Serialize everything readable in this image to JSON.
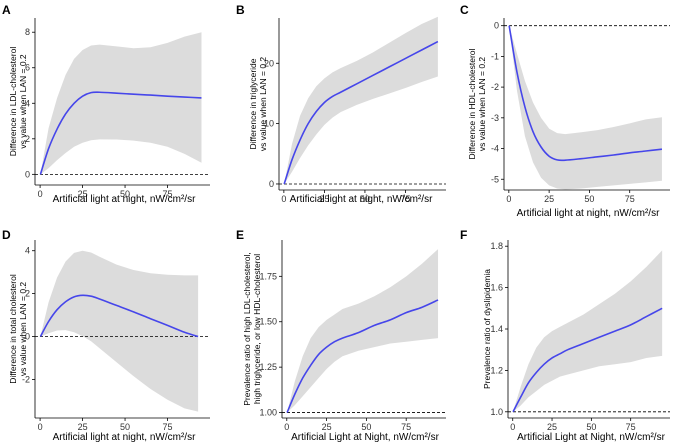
{
  "colors": {
    "line": "#4646ea",
    "band": "#dcdcdc",
    "axis": "#000000",
    "reference": "#000000"
  },
  "chart_data": [
    {
      "type": "line",
      "panel": "A",
      "xlabel": "Artificial light at night, nW/cm²/sr",
      "ylabel": [
        "Difference in LDL-cholesterol",
        "vs value when LAN = 0.2"
      ],
      "xlim": [
        -3,
        100
      ],
      "ylim": [
        -0.6,
        8.8
      ],
      "xticks": [
        0,
        25,
        50,
        75
      ],
      "xtick_labels": [
        "0",
        "25",
        "50",
        "75"
      ],
      "yticks": [
        0,
        2,
        4,
        6,
        8
      ],
      "ytick_labels": [
        "0",
        "2",
        "4",
        "6",
        "8"
      ],
      "reference_y": 0,
      "series": [
        {
          "name": "estimate",
          "x": [
            0.2,
            5,
            10,
            15,
            20,
            25,
            30,
            35,
            45,
            55,
            65,
            75,
            85,
            95
          ],
          "y": [
            0,
            1.45,
            2.55,
            3.4,
            4.0,
            4.4,
            4.6,
            4.62,
            4.57,
            4.51,
            4.46,
            4.4,
            4.35,
            4.3
          ],
          "lower": [
            0,
            0.35,
            0.8,
            1.2,
            1.55,
            1.78,
            1.92,
            1.97,
            1.96,
            1.9,
            1.78,
            1.55,
            1.15,
            0.65
          ],
          "upper": [
            0,
            2.6,
            4.3,
            5.6,
            6.5,
            7.0,
            7.25,
            7.3,
            7.2,
            7.1,
            7.15,
            7.4,
            7.75,
            8.0
          ]
        }
      ]
    },
    {
      "type": "line",
      "panel": "B",
      "xlabel": "Artificial light at night, nW/cm²/sr",
      "ylabel": [
        "Difference in triglyceride",
        "vs value when LAN = 0.2"
      ],
      "xlim": [
        -3,
        100
      ],
      "ylim": [
        -1,
        27.5
      ],
      "xticks": [
        0,
        25,
        50,
        75
      ],
      "xtick_labels": [
        "0",
        "25",
        "50",
        "75"
      ],
      "yticks": [
        0,
        10,
        20
      ],
      "ytick_labels": [
        "0",
        "10",
        "20"
      ],
      "reference_y": 0,
      "series": [
        {
          "name": "estimate",
          "x": [
            0.2,
            5,
            10,
            15,
            20,
            25,
            30,
            35,
            45,
            55,
            65,
            75,
            85,
            95
          ],
          "y": [
            0,
            4.0,
            7.3,
            10.0,
            12.0,
            13.5,
            14.5,
            15.2,
            16.6,
            18.0,
            19.4,
            20.8,
            22.2,
            23.6
          ],
          "lower": [
            0,
            2.0,
            4.3,
            6.4,
            8.2,
            9.8,
            11.0,
            11.9,
            13.1,
            14.1,
            15.0,
            15.9,
            16.9,
            17.8
          ],
          "upper": [
            0,
            6.6,
            11.3,
            14.2,
            16.2,
            17.5,
            18.5,
            19.2,
            20.4,
            21.8,
            23.4,
            25.0,
            26.5,
            27.7
          ]
        }
      ]
    },
    {
      "type": "line",
      "panel": "C",
      "xlabel": "Artificial light at night, nW/cm²/sr",
      "ylabel": [
        "Difference in HDL-cholesterol",
        "vs value when LAN = 0.2"
      ],
      "xlim": [
        -3,
        100
      ],
      "ylim": [
        -5.35,
        0.25
      ],
      "xticks": [
        0,
        25,
        50,
        75
      ],
      "xtick_labels": [
        "0",
        "25",
        "50",
        "75"
      ],
      "yticks": [
        0,
        -1,
        -2,
        -3,
        -4,
        -5
      ],
      "ytick_labels": [
        "0",
        "-1",
        "-2",
        "-3",
        "-4",
        "-5"
      ],
      "reference_y": 0,
      "series": [
        {
          "name": "estimate",
          "x": [
            0.2,
            5,
            10,
            15,
            20,
            25,
            30,
            35,
            45,
            55,
            65,
            75,
            85,
            95
          ],
          "y": [
            0,
            -1.5,
            -2.65,
            -3.45,
            -3.95,
            -4.25,
            -4.37,
            -4.38,
            -4.33,
            -4.27,
            -4.21,
            -4.14,
            -4.08,
            -4.02
          ],
          "lower": [
            0,
            -2.1,
            -3.6,
            -4.45,
            -4.95,
            -5.2,
            -5.3,
            -5.33,
            -5.3,
            -5.25,
            -5.2,
            -5.15,
            -5.1,
            -5.05
          ],
          "upper": [
            0,
            -0.9,
            -1.8,
            -2.5,
            -3.0,
            -3.35,
            -3.5,
            -3.53,
            -3.47,
            -3.4,
            -3.3,
            -3.18,
            -3.05,
            -2.98
          ]
        }
      ]
    },
    {
      "type": "line",
      "panel": "D",
      "xlabel": "Artificial light at night, nW/cm²/sr",
      "ylabel": [
        "Difference in total cholesterol",
        "vs value when LAN = 0.2"
      ],
      "xlim": [
        -3,
        100
      ],
      "ylim": [
        -3.8,
        4.5
      ],
      "xticks": [
        0,
        25,
        50,
        75
      ],
      "xtick_labels": [
        "0",
        "25",
        "50",
        "75"
      ],
      "yticks": [
        4,
        2,
        0,
        -2
      ],
      "ytick_labels": [
        "4",
        "2",
        "0",
        "-2"
      ],
      "reference_y": 0,
      "series": [
        {
          "name": "estimate",
          "x": [
            0.2,
            5,
            10,
            15,
            20,
            25,
            30,
            35,
            45,
            55,
            65,
            75,
            85,
            93
          ],
          "y": [
            0,
            0.7,
            1.25,
            1.62,
            1.85,
            1.92,
            1.88,
            1.75,
            1.45,
            1.15,
            0.83,
            0.52,
            0.2,
            0
          ],
          "lower": [
            0,
            0.15,
            0.28,
            0.3,
            0.2,
            0.02,
            -0.22,
            -0.55,
            -1.2,
            -1.85,
            -2.45,
            -2.95,
            -3.35,
            -3.5
          ],
          "upper": [
            0,
            1.6,
            2.75,
            3.5,
            3.9,
            4.0,
            3.92,
            3.72,
            3.35,
            3.1,
            2.95,
            2.88,
            2.85,
            2.85
          ]
        }
      ]
    },
    {
      "type": "line",
      "panel": "E",
      "xlabel": "Artificial Light at Night, nW/cm²/sr",
      "ylabel": [
        "Prevalence ratio of high LDL-cholesterol,",
        "high triglyceride, or low HDL-cholesterol"
      ],
      "xlim": [
        -3,
        100
      ],
      "ylim": [
        0.97,
        1.95
      ],
      "xticks": [
        0,
        25,
        50,
        75
      ],
      "xtick_labels": [
        "0",
        "25",
        "50",
        "75"
      ],
      "yticks": [
        1.0,
        1.25,
        1.5,
        1.75
      ],
      "ytick_labels": [
        "1.00",
        "1.25",
        "1.50",
        "1.75"
      ],
      "reference_y": 1.0,
      "series": [
        {
          "name": "estimate",
          "x": [
            0.2,
            5,
            10,
            15,
            20,
            25,
            30,
            35,
            45,
            55,
            65,
            75,
            85,
            95
          ],
          "y": [
            1.0,
            1.1,
            1.19,
            1.26,
            1.32,
            1.36,
            1.39,
            1.41,
            1.44,
            1.48,
            1.51,
            1.55,
            1.58,
            1.62
          ],
          "lower": [
            1.0,
            1.04,
            1.09,
            1.14,
            1.19,
            1.24,
            1.28,
            1.31,
            1.34,
            1.36,
            1.38,
            1.39,
            1.4,
            1.41
          ],
          "upper": [
            1.0,
            1.17,
            1.31,
            1.41,
            1.47,
            1.51,
            1.54,
            1.57,
            1.6,
            1.64,
            1.69,
            1.75,
            1.82,
            1.9
          ]
        }
      ]
    },
    {
      "type": "line",
      "panel": "F",
      "xlabel": "Artificial Light at Night, nW/cm²/sr",
      "ylabel": [
        "Prevalence ratio of dyslipidemia"
      ],
      "xlim": [
        -3,
        100
      ],
      "ylim": [
        0.97,
        1.83
      ],
      "xticks": [
        0,
        25,
        50,
        75
      ],
      "xtick_labels": [
        "0",
        "25",
        "50",
        "75"
      ],
      "yticks": [
        1.0,
        1.2,
        1.4,
        1.6,
        1.8
      ],
      "ytick_labels": [
        "1.0",
        "1.2",
        "1.4",
        "1.6",
        "1.8"
      ],
      "reference_y": 1.0,
      "series": [
        {
          "name": "estimate",
          "x": [
            0.2,
            5,
            10,
            15,
            20,
            25,
            30,
            35,
            45,
            55,
            65,
            75,
            85,
            95
          ],
          "y": [
            1.0,
            1.07,
            1.14,
            1.19,
            1.23,
            1.26,
            1.28,
            1.3,
            1.33,
            1.36,
            1.39,
            1.42,
            1.46,
            1.5
          ],
          "lower": [
            1.0,
            1.03,
            1.07,
            1.1,
            1.13,
            1.15,
            1.17,
            1.18,
            1.2,
            1.22,
            1.23,
            1.24,
            1.26,
            1.27
          ],
          "upper": [
            1.0,
            1.12,
            1.23,
            1.31,
            1.36,
            1.39,
            1.41,
            1.43,
            1.47,
            1.52,
            1.57,
            1.63,
            1.7,
            1.78
          ]
        }
      ]
    }
  ]
}
